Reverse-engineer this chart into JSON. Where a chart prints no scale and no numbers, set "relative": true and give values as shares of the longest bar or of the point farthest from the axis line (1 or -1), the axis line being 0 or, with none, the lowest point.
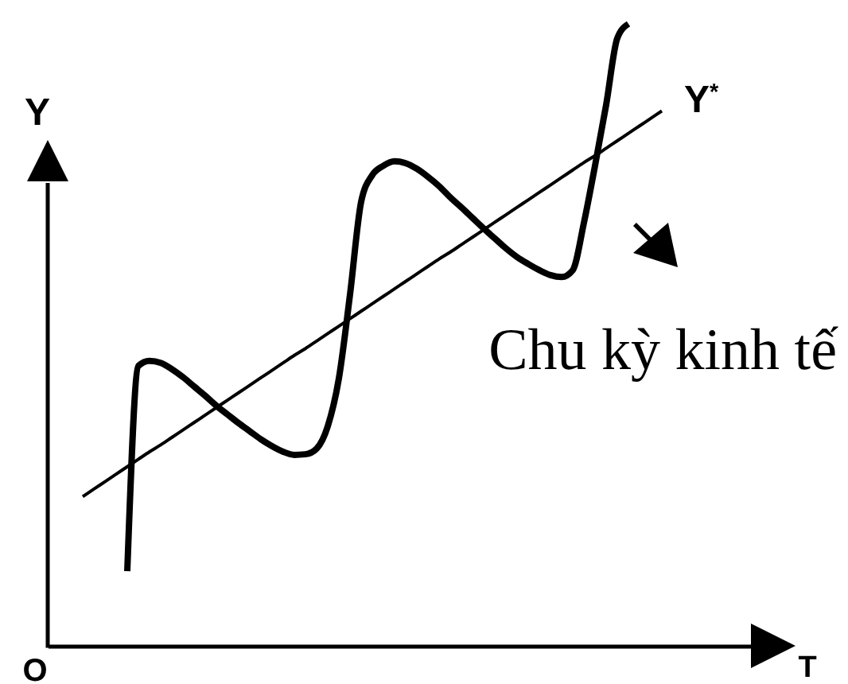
{
  "chart_data": {
    "type": "line",
    "relative": true,
    "xlabel": "T",
    "ylabel": "Y",
    "annotations": [
      "O",
      "Chu kỳ kinh tế"
    ],
    "categories": [
      null,
      null,
      null,
      null,
      null,
      null,
      null,
      null,
      null,
      null,
      null,
      null,
      null,
      null,
      null,
      null,
      null,
      null,
      null,
      null,
      null,
      null,
      null,
      null,
      null,
      null,
      null,
      null,
      null,
      null,
      null,
      null,
      null,
      null,
      null,
      null,
      null,
      null,
      null,
      null,
      null,
      null,
      null,
      null,
      null,
      null,
      null,
      null,
      null,
      null,
      null,
      null,
      null
    ],
    "series": [
      {
        "color": "#000000",
        "values": [
          null,
          null,
          null,
          null,
          0.12,
          0.45,
          0.458,
          0.455,
          0.445,
          0.432,
          0.417,
          0.402,
          0.386,
          0.372,
          0.358,
          0.345,
          0.332,
          0.321,
          0.312,
          0.307,
          0.308,
          0.317,
          0.353,
          0.43,
          0.565,
          0.714,
          0.757,
          0.772,
          0.779,
          0.776,
          0.767,
          0.754,
          0.739,
          0.721,
          0.705,
          0.688,
          0.671,
          0.655,
          0.639,
          0.625,
          0.614,
          0.604,
          0.596,
          0.593,
          0.604,
          0.68,
          0.772,
          0.87,
          0.977,
          1,
          null,
          null,
          null
        ]
      },
      {
        "name": "Y$^{*}$",
        "color": "#000000",
        "values": [
          0.24,
          0.252,
          0.264,
          0.276,
          0.288,
          0.3,
          0.312,
          0.323,
          0.335,
          0.347,
          0.359,
          0.371,
          0.383,
          0.395,
          0.407,
          0.419,
          0.431,
          0.443,
          0.455,
          0.467,
          0.478,
          0.49,
          0.502,
          0.514,
          0.526,
          0.538,
          0.55,
          0.562,
          0.574,
          0.586,
          0.598,
          0.61,
          0.622,
          0.633,
          0.645,
          0.657,
          0.669,
          0.681,
          0.693,
          0.705,
          0.717,
          0.729,
          0.741,
          0.753,
          0.765,
          0.777,
          0.788,
          0.8,
          0.812,
          0.824,
          0.836,
          0.848,
          0.86
        ]
      }
    ]
  }
}
